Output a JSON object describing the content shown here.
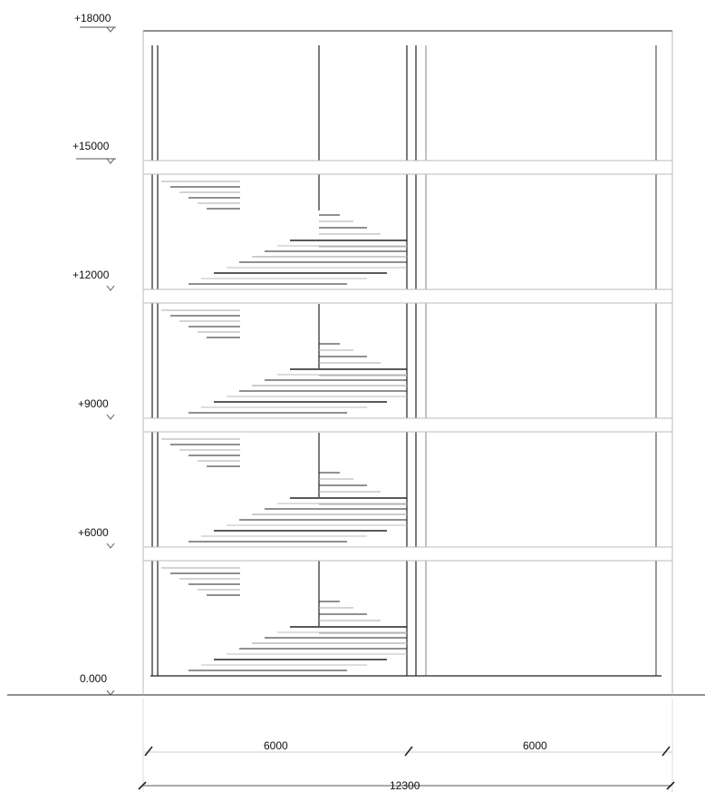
{
  "drawing": {
    "levels": [
      {
        "id": "level-18000",
        "label": "+18000"
      },
      {
        "id": "level-15000",
        "label": "+15000"
      },
      {
        "id": "level-12000",
        "label": "+12000"
      },
      {
        "id": "level-9000",
        "label": "+9000"
      },
      {
        "id": "level-6000",
        "label": "+6000"
      },
      {
        "id": "level-0",
        "label": "0.000"
      }
    ],
    "dimensions": {
      "bay_left": "6000",
      "bay_right": "6000",
      "overall": "12300"
    }
  }
}
